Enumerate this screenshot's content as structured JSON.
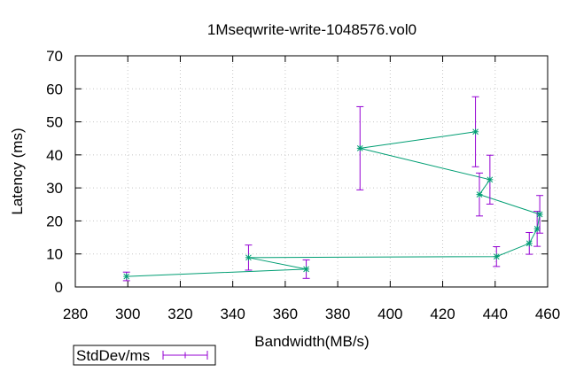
{
  "chart_data": {
    "type": "scatter",
    "title": "1Mseqwrite-write-1048576.vol0",
    "xlabel": "Bandwidth(MB/s)",
    "ylabel": "Latency (ms)",
    "xlim": [
      280,
      460
    ],
    "ylim": [
      0,
      70
    ],
    "xticks": [
      280,
      300,
      320,
      340,
      360,
      380,
      400,
      420,
      440,
      460
    ],
    "yticks": [
      0,
      10,
      20,
      30,
      40,
      50,
      60,
      70
    ],
    "grid": true,
    "legend_placement": "bottom-left",
    "line_color": "#009e73",
    "errorbar_color": "#9400d3",
    "series": [
      {
        "name": "StdDev/ms",
        "points": [
          {
            "x": 299.5,
            "y": 3.2,
            "err": 1.3
          },
          {
            "x": 368,
            "y": 5.4,
            "err": 2.8
          },
          {
            "x": 346,
            "y": 8.9,
            "err": 3.8
          },
          {
            "x": 440.5,
            "y": 9.2,
            "err": 3.0
          },
          {
            "x": 453,
            "y": 13.2,
            "err": 3.3
          },
          {
            "x": 456,
            "y": 17.6,
            "err": 5.3
          },
          {
            "x": 457,
            "y": 22.0,
            "err": 5.7
          },
          {
            "x": 434,
            "y": 28.0,
            "err": 6.5
          },
          {
            "x": 438,
            "y": 32.5,
            "err": 7.4
          },
          {
            "x": 388.5,
            "y": 42.0,
            "err": 12.6
          },
          {
            "x": 432.5,
            "y": 47.0,
            "err": 10.6
          }
        ]
      }
    ]
  }
}
